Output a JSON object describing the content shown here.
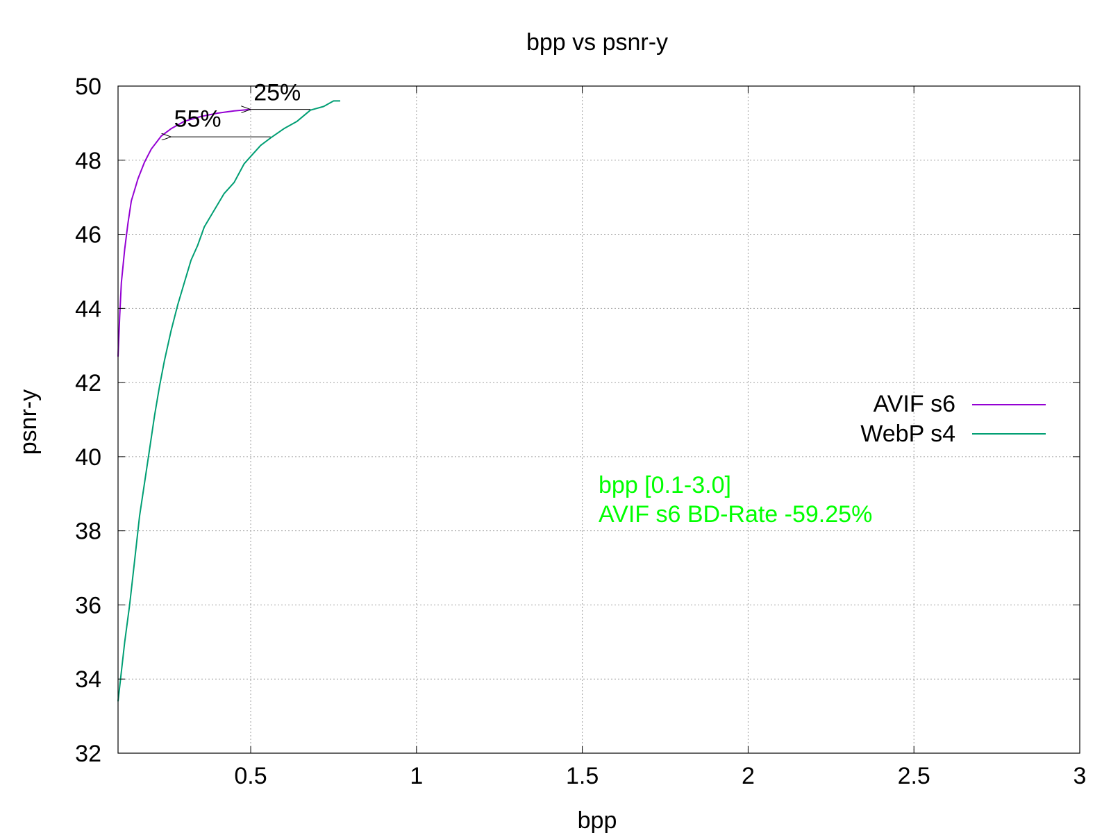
{
  "chart_data": {
    "type": "line",
    "title": "bpp vs psnr-y",
    "xlabel": "bpp",
    "ylabel": "psnr-y",
    "xlim": [
      0.1,
      3.0
    ],
    "ylim": [
      32,
      50
    ],
    "grid": true,
    "legend_position": "right",
    "x_ticks": [
      {
        "value": 0.5,
        "label": "0.5"
      },
      {
        "value": 1.0,
        "label": "1"
      },
      {
        "value": 1.5,
        "label": "1.5"
      },
      {
        "value": 2.0,
        "label": "2"
      },
      {
        "value": 2.5,
        "label": "2.5"
      },
      {
        "value": 3.0,
        "label": "3"
      }
    ],
    "y_ticks": [
      {
        "value": 32,
        "label": "32"
      },
      {
        "value": 34,
        "label": "34"
      },
      {
        "value": 36,
        "label": "36"
      },
      {
        "value": 38,
        "label": "38"
      },
      {
        "value": 40,
        "label": "40"
      },
      {
        "value": 42,
        "label": "42"
      },
      {
        "value": 44,
        "label": "44"
      },
      {
        "value": 46,
        "label": "46"
      },
      {
        "value": 48,
        "label": "48"
      },
      {
        "value": 50,
        "label": "50"
      }
    ],
    "series": [
      {
        "name": "AVIF s6",
        "color": "#9400d3",
        "points": [
          [
            0.1,
            42.7
          ],
          [
            0.105,
            43.8
          ],
          [
            0.11,
            44.7
          ],
          [
            0.12,
            45.6
          ],
          [
            0.13,
            46.3
          ],
          [
            0.14,
            46.9
          ],
          [
            0.16,
            47.5
          ],
          [
            0.18,
            47.95
          ],
          [
            0.2,
            48.3
          ],
          [
            0.23,
            48.65
          ],
          [
            0.26,
            48.85
          ],
          [
            0.3,
            49.05
          ],
          [
            0.35,
            49.18
          ],
          [
            0.4,
            49.27
          ],
          [
            0.45,
            49.33
          ],
          [
            0.5,
            49.37
          ]
        ]
      },
      {
        "name": "WebP s4",
        "color": "#009e73",
        "points": [
          [
            0.1,
            33.4
          ],
          [
            0.11,
            34.2
          ],
          [
            0.12,
            35.0
          ],
          [
            0.135,
            36.0
          ],
          [
            0.15,
            37.2
          ],
          [
            0.165,
            38.4
          ],
          [
            0.18,
            39.3
          ],
          [
            0.195,
            40.2
          ],
          [
            0.21,
            41.1
          ],
          [
            0.225,
            41.9
          ],
          [
            0.24,
            42.6
          ],
          [
            0.26,
            43.4
          ],
          [
            0.28,
            44.1
          ],
          [
            0.3,
            44.7
          ],
          [
            0.32,
            45.3
          ],
          [
            0.34,
            45.7
          ],
          [
            0.36,
            46.2
          ],
          [
            0.38,
            46.5
          ],
          [
            0.4,
            46.8
          ],
          [
            0.42,
            47.1
          ],
          [
            0.45,
            47.4
          ],
          [
            0.48,
            47.9
          ],
          [
            0.5,
            48.1
          ],
          [
            0.53,
            48.4
          ],
          [
            0.56,
            48.6
          ],
          [
            0.6,
            48.85
          ],
          [
            0.64,
            49.05
          ],
          [
            0.68,
            49.35
          ],
          [
            0.72,
            49.45
          ],
          [
            0.75,
            49.6
          ],
          [
            0.77,
            49.6
          ]
        ]
      }
    ],
    "annotations": [
      {
        "label": "25%",
        "text_x": 0.58,
        "text_y": 49.62,
        "from_x": 0.68,
        "to_x": 0.5,
        "y": 49.37
      },
      {
        "label": "55%",
        "text_x": 0.34,
        "text_y": 48.9,
        "from_x": 0.56,
        "to_x": 0.26,
        "y": 48.63
      }
    ],
    "info_text": [
      "bpp [0.1-3.0]",
      "AVIF s6 BD-Rate -59.25%"
    ],
    "info_color": "#00ff00"
  }
}
